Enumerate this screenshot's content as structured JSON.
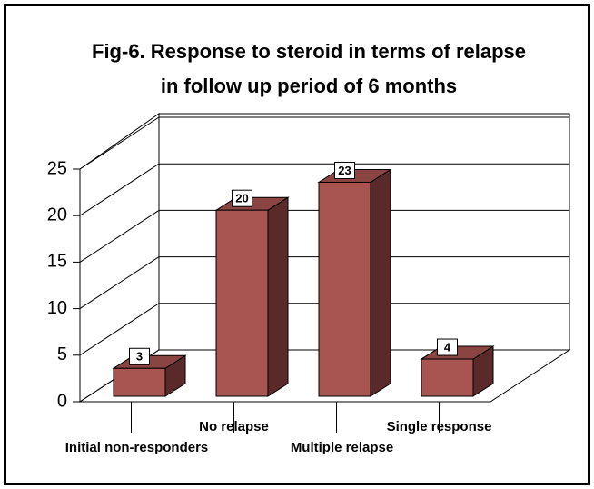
{
  "chart_data": {
    "type": "bar3d",
    "title": "Fig-6. Response to steroid in terms of relapse in follow up period of 6 months",
    "categories": [
      "Initial non-responders",
      "No relapse",
      "Multiple relapse",
      "Single response"
    ],
    "values": [
      3,
      20,
      23,
      4
    ],
    "color": "#a85552",
    "ylim": [
      0,
      25
    ],
    "yticks": [
      0,
      5,
      10,
      15,
      20,
      25
    ],
    "grid": true
  }
}
